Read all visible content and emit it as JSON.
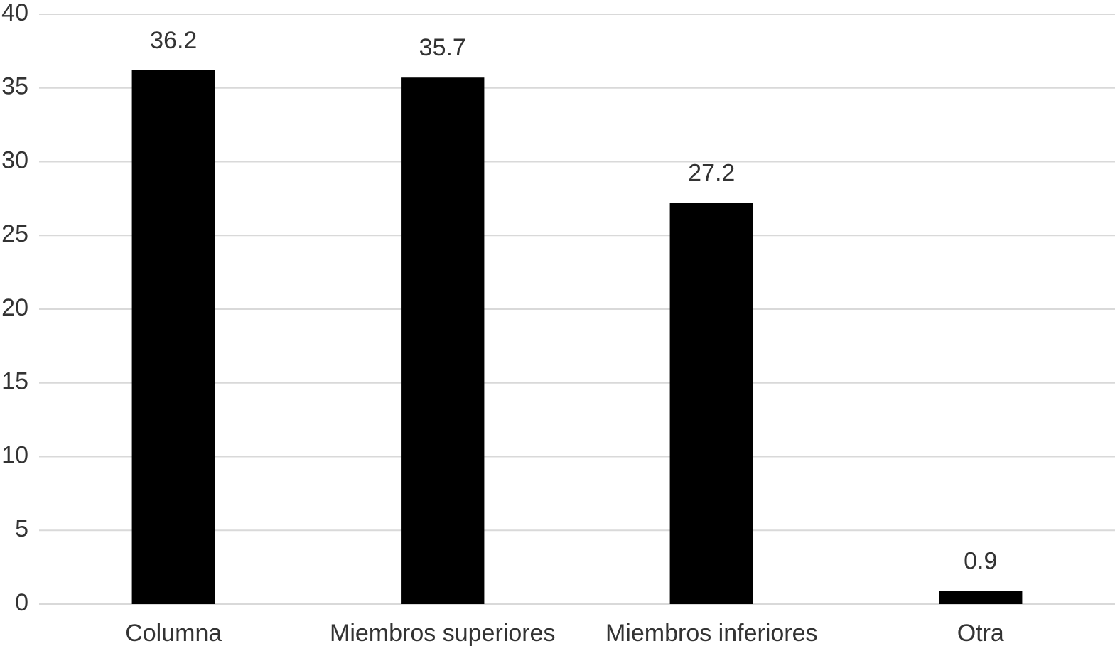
{
  "chart_data": {
    "type": "bar",
    "categories": [
      "Columna",
      "Miembros superiores",
      "Miembros inferiores",
      "Otra"
    ],
    "values": [
      36.2,
      35.7,
      27.2,
      0.9
    ],
    "color": "#000000",
    "ylim": [
      0,
      40
    ],
    "yticks": [
      0,
      5,
      10,
      15,
      20,
      25,
      30,
      35,
      40
    ],
    "grid": true
  }
}
